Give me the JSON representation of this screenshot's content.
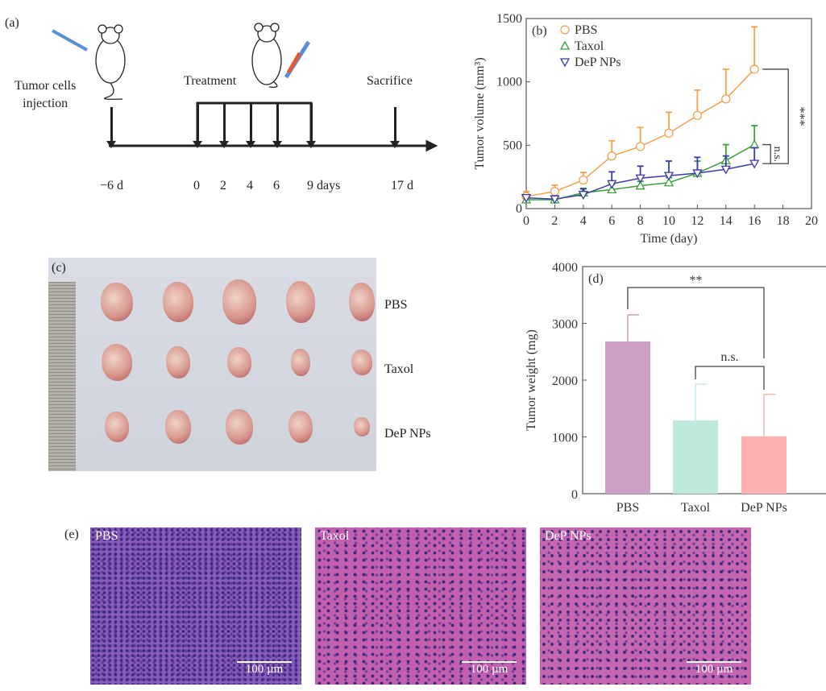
{
  "panel_a": {
    "label": "(a)",
    "injection": "Tumor cells injection",
    "injection_l1": "Tumor cells",
    "injection_l2": "injection",
    "treatment": "Treatment",
    "sacrifice": "Sacrifice",
    "ticks": [
      {
        "day": -6,
        "label": "−6 d"
      },
      {
        "day": 0,
        "label": "0"
      },
      {
        "day": 2,
        "label": "2"
      },
      {
        "day": 4,
        "label": "4"
      },
      {
        "day": 6,
        "label": "6"
      },
      {
        "day": 9,
        "label": "9 days"
      },
      {
        "day": 17,
        "label": "17 d"
      }
    ]
  },
  "panel_c": {
    "label": "(c)",
    "rows": [
      "PBS",
      "Taxol",
      "DeP NPs"
    ]
  },
  "panel_e": {
    "label": "(e)",
    "images": [
      {
        "label": "PBS",
        "scale": "100 µm"
      },
      {
        "label": "Taxol",
        "scale": "100 µm"
      },
      {
        "label": "DeP NPs",
        "scale": "100 µm"
      }
    ]
  },
  "chart_data": [
    {
      "panel": "(b)",
      "type": "line",
      "xlabel": "Time (day)",
      "ylabel": "Tumor volume (mm³)",
      "xlim": [
        0,
        20
      ],
      "ylim": [
        0,
        1500
      ],
      "xticks": [
        0,
        2,
        4,
        6,
        8,
        10,
        12,
        14,
        16,
        18,
        20
      ],
      "yticks": [
        0,
        500,
        1000,
        1500
      ],
      "legend": "top-left",
      "x": [
        0,
        2,
        4,
        6,
        8,
        10,
        12,
        14,
        16
      ],
      "series": [
        {
          "name": "PBS",
          "color": "#f5a04a",
          "marker": "circle",
          "values": [
            95,
            135,
            225,
            415,
            490,
            595,
            735,
            865,
            1100
          ],
          "err": [
            40,
            50,
            60,
            120,
            150,
            165,
            200,
            235,
            335
          ]
        },
        {
          "name": "Taxol",
          "color": "#3aa03a",
          "marker": "triangle-up",
          "values": [
            70,
            70,
            125,
            150,
            180,
            205,
            280,
            380,
            505
          ],
          "err": [
            35,
            25,
            35,
            40,
            35,
            40,
            95,
            125,
            150
          ]
        },
        {
          "name": "DeP NPs",
          "color": "#3b3ba8",
          "marker": "triangle-down",
          "values": [
            85,
            75,
            110,
            195,
            240,
            260,
            280,
            310,
            355
          ],
          "err": [
            20,
            25,
            45,
            95,
            95,
            115,
            125,
            105,
            125
          ]
        }
      ],
      "annotations": [
        {
          "text": "***",
          "between": [
            "PBS",
            "DeP NPs"
          ]
        },
        {
          "text": "n.s.",
          "between": [
            "Taxol",
            "DeP NPs"
          ]
        }
      ]
    },
    {
      "panel": "(d)",
      "type": "bar",
      "xlabel": "",
      "ylabel": "Tumor weight (mg)",
      "ylim": [
        0,
        4000
      ],
      "yticks": [
        0,
        1000,
        2000,
        3000,
        4000
      ],
      "categories": [
        "PBS",
        "Taxol",
        "DeP NPs"
      ],
      "values": [
        2680,
        1290,
        1010
      ],
      "err": [
        470,
        640,
        740
      ],
      "colors": [
        "#cf9fc4",
        "#bfeadb",
        "#fdb1b1"
      ],
      "annotations": [
        {
          "text": "**",
          "between": [
            "PBS",
            "DeP NPs"
          ]
        },
        {
          "text": "n.s.",
          "between": [
            "Taxol",
            "DeP NPs"
          ]
        }
      ]
    }
  ]
}
